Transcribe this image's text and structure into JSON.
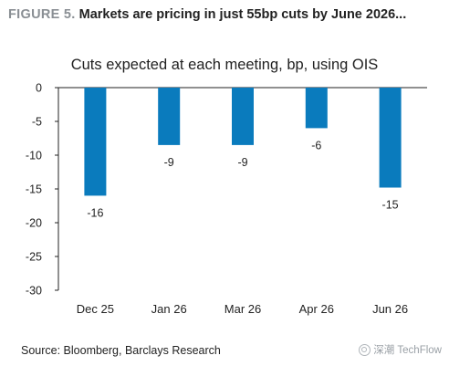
{
  "header": {
    "figure_label": "FIGURE 5.",
    "title": "Markets are pricing in just 55bp cuts by June 2026..."
  },
  "footer": {
    "source": "Source: Bloomberg, Barclays Research",
    "watermark": "深潮 TechFlow"
  },
  "colors": {
    "bar": "#0a7bbd",
    "axis": "#222222"
  },
  "chart_data": {
    "type": "bar",
    "title": "Cuts expected at each meeting, bp, using OIS",
    "xlabel": "",
    "ylabel": "",
    "categories": [
      "Dec 25",
      "Jan 26",
      "Mar 26",
      "Apr 26",
      "Jun 26"
    ],
    "values": [
      -16,
      -8.5,
      -8.5,
      -6,
      -14.8
    ],
    "data_labels": [
      "-16",
      "-9",
      "-9",
      "-6",
      "-15"
    ],
    "ylim": [
      -30,
      0
    ],
    "yticks": [
      0,
      -5,
      -10,
      -15,
      -20,
      -25,
      -30
    ],
    "grid": false,
    "legend": "none"
  }
}
